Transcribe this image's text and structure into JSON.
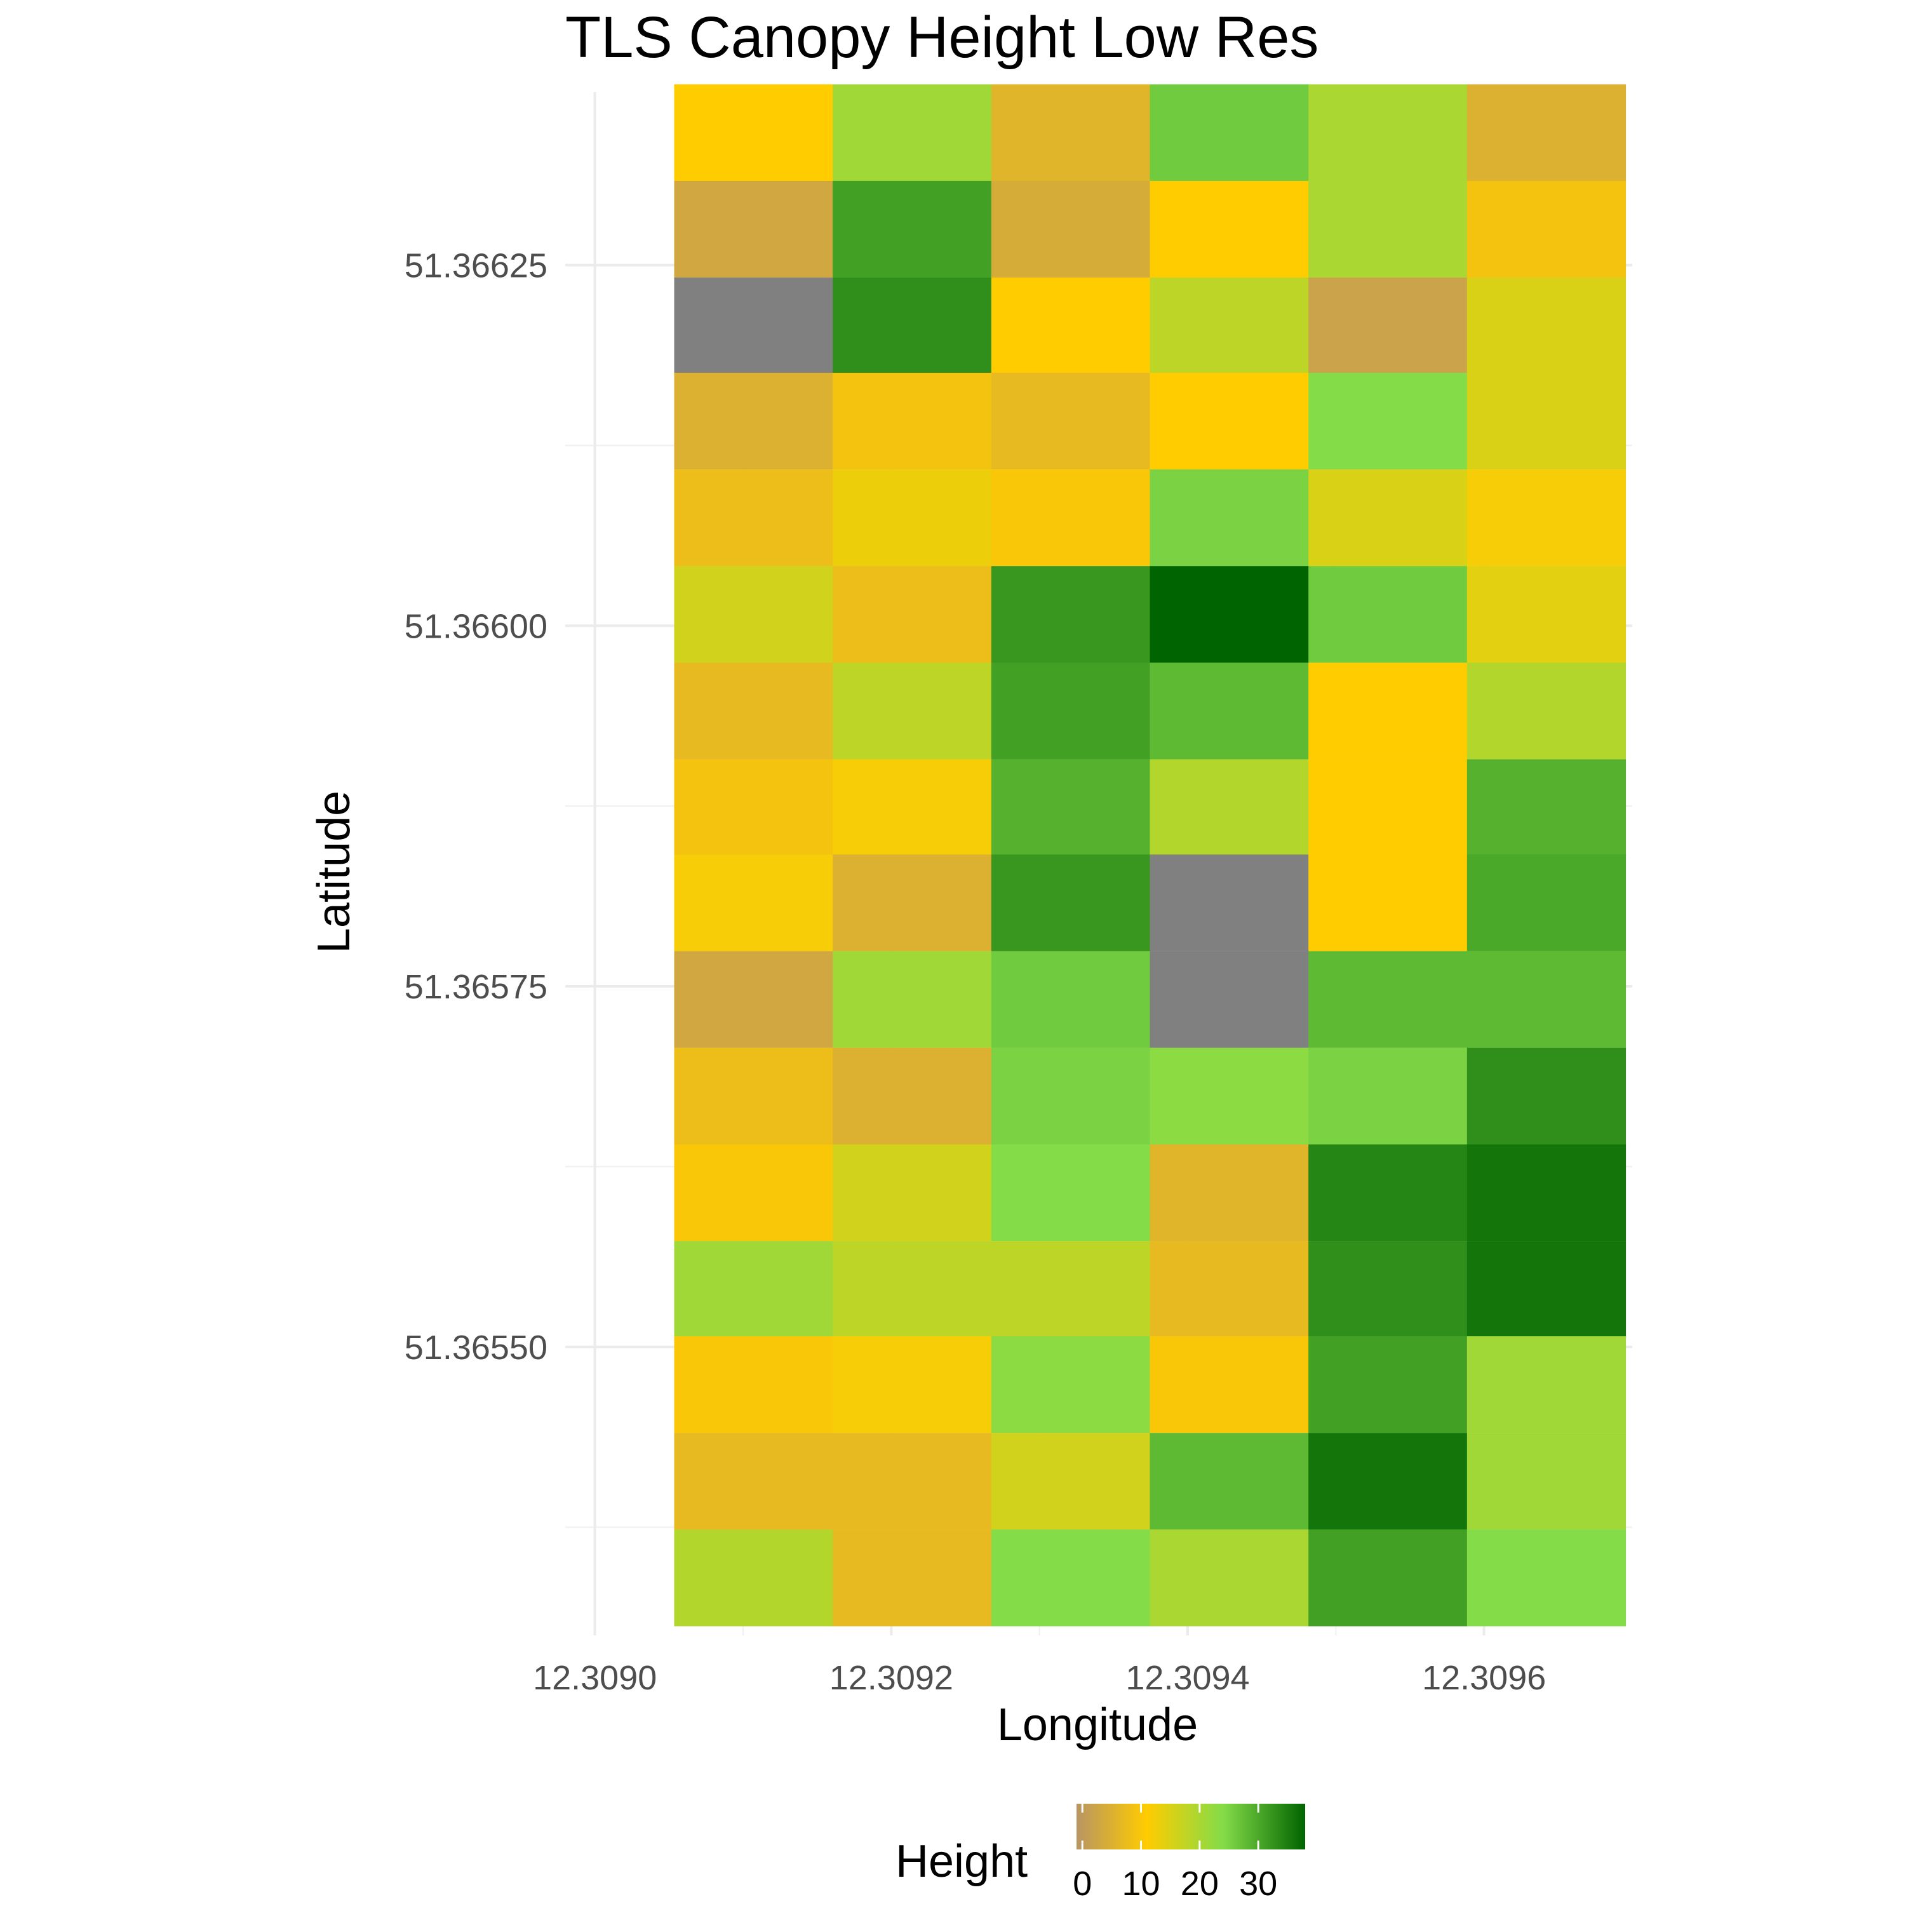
{
  "chart_data": {
    "type": "heatmap",
    "title": "TLS Canopy Height Low Res",
    "xlabel": "Longitude",
    "ylabel": "Latitude",
    "x_ticks": [
      12.309,
      12.3092,
      12.3094,
      12.3096
    ],
    "x_tick_labels": [
      "12.3090",
      "12.3092",
      "12.3094",
      "12.3096"
    ],
    "y_ticks": [
      51.36625,
      51.366,
      51.36575,
      51.3655
    ],
    "y_tick_labels": [
      "51.36625",
      "51.36600",
      "51.36575",
      "51.36550"
    ],
    "xlim": [
      12.30898,
      12.3097
    ],
    "ylim": [
      51.3653,
      51.36637
    ],
    "x_centers": [
      12.309107,
      12.309214,
      12.309321,
      12.309428,
      12.309535,
      12.309642
    ],
    "y_centers": [
      51.366342,
      51.366275,
      51.366208,
      51.366142,
      51.366075,
      51.366008,
      51.365941,
      51.365874,
      51.365808,
      51.365741,
      51.365674,
      51.365607,
      51.36554,
      51.365474,
      51.365407,
      51.36534
    ],
    "cell_width": 0.000107,
    "cell_height": 6.68e-05,
    "values": [
      [
        11,
        21,
        6,
        26,
        20,
        5
      ],
      [
        3,
        31,
        4,
        11,
        20,
        9
      ],
      [
        null,
        33,
        11,
        18,
        2,
        15
      ],
      [
        5,
        9,
        7,
        11,
        24,
        15
      ],
      [
        8,
        13,
        10,
        25,
        15,
        12
      ],
      [
        16,
        8,
        32,
        38,
        26,
        14
      ],
      [
        7,
        18,
        31,
        28,
        11,
        19
      ],
      [
        9,
        12,
        29,
        19,
        11,
        29
      ],
      [
        12,
        5,
        32,
        null,
        11,
        30
      ],
      [
        3,
        21,
        26,
        null,
        28,
        28
      ],
      [
        8,
        5,
        25,
        23,
        25,
        33
      ],
      [
        10,
        16,
        24,
        6,
        34,
        36
      ],
      [
        21,
        18,
        18,
        7,
        33,
        36
      ],
      [
        10,
        12,
        23,
        10,
        31,
        21
      ],
      [
        7,
        7,
        16,
        28,
        36,
        21
      ],
      [
        19,
        7,
        24,
        20,
        31,
        24
      ]
    ],
    "na_color": "#808080",
    "color_scale": {
      "name": "Height",
      "domain": [
        -1,
        38
      ],
      "stops": [
        {
          "value": -1,
          "color": "#B89562"
        },
        {
          "value": 11,
          "color": "#FFCC00"
        },
        {
          "value": 24,
          "color": "#84DC48"
        },
        {
          "value": 38,
          "color": "#006400"
        }
      ],
      "ticks": [
        0,
        10,
        20,
        30
      ],
      "tick_labels": [
        "0",
        "10",
        "20",
        "30"
      ]
    },
    "grid": true,
    "legend_position": "bottom"
  }
}
